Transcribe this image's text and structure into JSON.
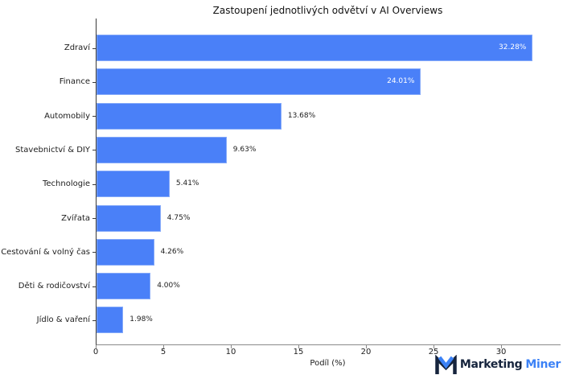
{
  "chart_data": {
    "type": "bar",
    "orientation": "horizontal",
    "title": "Zastoupení jednotlivých odvětví v AI Overviews",
    "xlabel": "Podíl (%)",
    "ylabel": "",
    "categories": [
      "Zdraví",
      "Finance",
      "Automobily",
      "Stavebnictví & DIY",
      "Technologie",
      "Zvířata",
      "Cestování & volný čas",
      "Děti & rodičovství",
      "Jídlo & vaření"
    ],
    "values": [
      32.28,
      24.01,
      13.68,
      9.63,
      5.41,
      4.75,
      4.26,
      4.0,
      1.98
    ],
    "value_labels": [
      "32.28%",
      "24.01%",
      "13.68%",
      "9.63%",
      "5.41%",
      "4.75%",
      "4.26%",
      "4.00%",
      "1.98%"
    ],
    "x_ticks": [
      0,
      5,
      10,
      15,
      20,
      25,
      30
    ],
    "xlim": [
      0,
      34.34
    ],
    "inside_label_threshold": 20,
    "bar_color": "#4a80f8",
    "grid": false,
    "legend": false
  },
  "branding": {
    "logo_text_primary": "Marketing",
    "logo_text_secondary": "Miner",
    "logo_primary_color": "#16243d",
    "logo_secondary_color": "#3c82f6"
  }
}
